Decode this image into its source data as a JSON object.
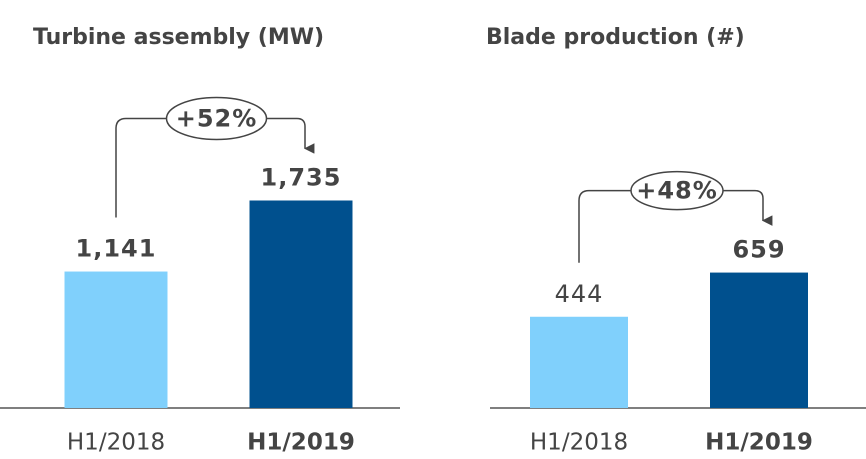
{
  "chart_data": [
    {
      "type": "bar",
      "title": "Turbine assembly (MW)",
      "categories": [
        "H1/2018",
        "H1/2019"
      ],
      "values": [
        1141,
        1735
      ],
      "value_labels": [
        "1,141",
        "1,735"
      ],
      "colors": [
        "#80d0fc",
        "#00508e"
      ],
      "annotation": "+52%"
    },
    {
      "type": "bar",
      "title": "Blade production (#)",
      "categories": [
        "H1/2018",
        "H1/2019"
      ],
      "values": [
        444,
        659
      ],
      "value_labels": [
        "444",
        "659"
      ],
      "colors": [
        "#80d0fc",
        "#00508e"
      ],
      "annotation": "+48%"
    }
  ]
}
